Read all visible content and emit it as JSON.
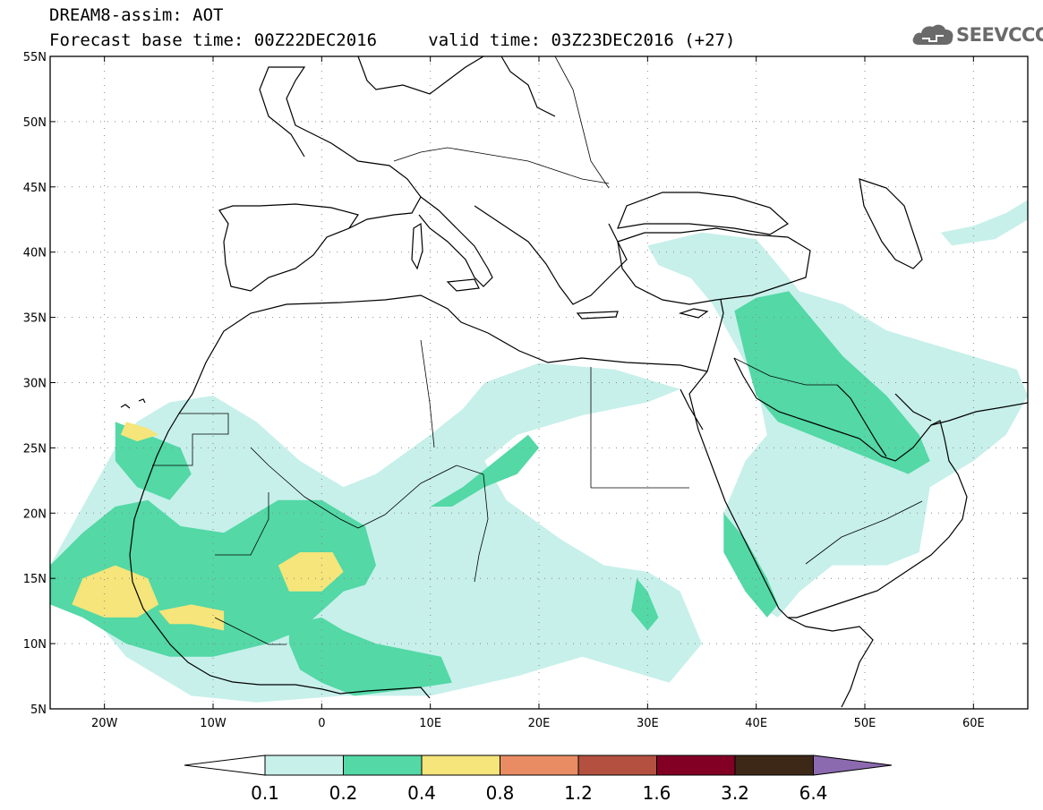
{
  "header": {
    "title_line1": "DREAM8-assim: AOT",
    "base_time_label": "Forecast base time: 00Z22DEC2016",
    "valid_time_label": "valid time: 03Z23DEC2016 (+27)"
  },
  "logo": {
    "text": "SEEVCCC",
    "icon": "cloud-icon"
  },
  "map": {
    "lon_range": [
      -25,
      65
    ],
    "lat_range": [
      5,
      55
    ],
    "lat_ticks": [
      {
        "value": 5,
        "label": "5N"
      },
      {
        "value": 10,
        "label": "10N"
      },
      {
        "value": 15,
        "label": "15N"
      },
      {
        "value": 20,
        "label": "20N"
      },
      {
        "value": 25,
        "label": "25N"
      },
      {
        "value": 30,
        "label": "30N"
      },
      {
        "value": 35,
        "label": "35N"
      },
      {
        "value": 40,
        "label": "40N"
      },
      {
        "value": 45,
        "label": "45N"
      },
      {
        "value": 50,
        "label": "50N"
      },
      {
        "value": 55,
        "label": "55N"
      }
    ],
    "lon_ticks": [
      {
        "value": -20,
        "label": "20W"
      },
      {
        "value": -10,
        "label": "10W"
      },
      {
        "value": 0,
        "label": "0"
      },
      {
        "value": 10,
        "label": "10E"
      },
      {
        "value": 20,
        "label": "20E"
      },
      {
        "value": 30,
        "label": "30E"
      },
      {
        "value": 40,
        "label": "40E"
      },
      {
        "value": 50,
        "label": "50E"
      },
      {
        "value": 60,
        "label": "60E"
      }
    ],
    "grid": "dotted",
    "colors": {
      "ocean": "#ffffff",
      "coastline": "#000000"
    }
  },
  "colorbar": {
    "levels": [
      "0.1",
      "0.2",
      "0.4",
      "0.8",
      "1.2",
      "1.6",
      "3.2",
      "6.4"
    ],
    "colors": [
      "#ffffff",
      "#c7f0ea",
      "#53d8a6",
      "#f5e57a",
      "#e98c64",
      "#b45040",
      "#820024",
      "#3d2716",
      "#8c6ab0"
    ],
    "extend": "both"
  },
  "aot_regions": [
    {
      "level": 1,
      "name": "west-africa-coast-light",
      "points": [
        [
          -25,
          16
        ],
        [
          -22,
          13
        ],
        [
          -18,
          9
        ],
        [
          -12,
          6
        ],
        [
          -6,
          5.5
        ],
        [
          2,
          6
        ],
        [
          10,
          6
        ],
        [
          18,
          7.5
        ],
        [
          24,
          9
        ],
        [
          28,
          8
        ],
        [
          32,
          7
        ],
        [
          35,
          10
        ],
        [
          33,
          14
        ],
        [
          30,
          15.5
        ],
        [
          26,
          16
        ],
        [
          22,
          18
        ],
        [
          17,
          21
        ],
        [
          15,
          24
        ],
        [
          18,
          26
        ],
        [
          24,
          27.5
        ],
        [
          30,
          28.5
        ],
        [
          33,
          29.5
        ],
        [
          27,
          31
        ],
        [
          20,
          31.5
        ],
        [
          15,
          30
        ],
        [
          13,
          28
        ],
        [
          10,
          26
        ],
        [
          5,
          23
        ],
        [
          2,
          22
        ],
        [
          -2,
          24
        ],
        [
          -6,
          27
        ],
        [
          -10,
          29
        ],
        [
          -14,
          28.5
        ],
        [
          -17,
          27
        ],
        [
          -19,
          25
        ],
        [
          -21,
          22
        ],
        [
          -23,
          19
        ]
      ]
    },
    {
      "level": 1,
      "name": "arabia-light",
      "points": [
        [
          30,
          40.5
        ],
        [
          35,
          41.5
        ],
        [
          40,
          41
        ],
        [
          44,
          37
        ],
        [
          48,
          36
        ],
        [
          52,
          34
        ],
        [
          56,
          33
        ],
        [
          60,
          32
        ],
        [
          64,
          31
        ],
        [
          65,
          29
        ],
        [
          63,
          26
        ],
        [
          60,
          24
        ],
        [
          56,
          22
        ],
        [
          55,
          17
        ],
        [
          52,
          16
        ],
        [
          47,
          16
        ],
        [
          44,
          14
        ],
        [
          42,
          12
        ],
        [
          40,
          13
        ],
        [
          38,
          17
        ],
        [
          37,
          20
        ],
        [
          39,
          24
        ],
        [
          41,
          26
        ],
        [
          40,
          30
        ],
        [
          38,
          33
        ],
        [
          36,
          36
        ],
        [
          34,
          38
        ],
        [
          31,
          39
        ]
      ]
    },
    {
      "level": 1,
      "name": "caspian-light",
      "points": [
        [
          57,
          41.5
        ],
        [
          60,
          42
        ],
        [
          63,
          43
        ],
        [
          65,
          44
        ],
        [
          65,
          42.5
        ],
        [
          62,
          41
        ],
        [
          58,
          40.5
        ]
      ]
    },
    {
      "level": 2,
      "name": "sahel-medium",
      "points": [
        [
          -25,
          16
        ],
        [
          -22,
          18.5
        ],
        [
          -19,
          20.5
        ],
        [
          -16,
          21
        ],
        [
          -13,
          19
        ],
        [
          -9,
          18.5
        ],
        [
          -6,
          20
        ],
        [
          -4,
          21
        ],
        [
          0,
          21
        ],
        [
          2,
          20
        ],
        [
          4,
          19
        ],
        [
          5,
          16
        ],
        [
          4,
          14.5
        ],
        [
          2,
          14
        ],
        [
          0,
          12.5
        ],
        [
          -2,
          11
        ],
        [
          -5,
          10
        ],
        [
          -10,
          9
        ],
        [
          -14,
          9
        ],
        [
          -18,
          10
        ],
        [
          -22,
          12
        ],
        [
          -25,
          13
        ]
      ]
    },
    {
      "level": 2,
      "name": "nigeria-medium",
      "points": [
        [
          -3,
          11.5
        ],
        [
          0,
          12
        ],
        [
          2,
          11
        ],
        [
          5,
          10
        ],
        [
          8,
          9.5
        ],
        [
          11,
          9
        ],
        [
          12,
          7
        ],
        [
          8,
          6.5
        ],
        [
          3,
          6
        ],
        [
          0,
          7
        ],
        [
          -2,
          8
        ],
        [
          -3,
          10
        ]
      ]
    },
    {
      "level": 2,
      "name": "chad-medium",
      "points": [
        [
          10,
          20.5
        ],
        [
          13,
          22
        ],
        [
          16,
          24
        ],
        [
          19,
          26
        ],
        [
          20,
          25
        ],
        [
          18,
          23
        ],
        [
          15,
          22
        ],
        [
          12,
          20.5
        ]
      ]
    },
    {
      "level": 2,
      "name": "morocco-medium",
      "points": [
        [
          -19,
          27
        ],
        [
          -16,
          26
        ],
        [
          -13,
          25
        ],
        [
          -12,
          23
        ],
        [
          -14,
          21
        ],
        [
          -17,
          22
        ],
        [
          -19,
          24
        ]
      ]
    },
    {
      "level": 2,
      "name": "mesopotamia-medium",
      "points": [
        [
          38,
          35.5
        ],
        [
          40,
          36.5
        ],
        [
          43,
          37
        ],
        [
          45,
          35
        ],
        [
          48,
          32
        ],
        [
          52,
          29
        ],
        [
          55,
          26
        ],
        [
          56,
          24
        ],
        [
          54,
          23
        ],
        [
          51,
          24
        ],
        [
          48,
          25
        ],
        [
          45,
          26
        ],
        [
          42,
          27
        ],
        [
          40,
          29
        ],
        [
          39,
          32
        ]
      ]
    },
    {
      "level": 2,
      "name": "red-sea-medium",
      "points": [
        [
          37,
          20
        ],
        [
          39,
          18
        ],
        [
          41,
          15
        ],
        [
          42,
          13
        ],
        [
          41,
          12
        ],
        [
          39,
          14
        ],
        [
          37,
          17
        ]
      ]
    },
    {
      "level": 2,
      "name": "sudan-medium",
      "points": [
        [
          29,
          15
        ],
        [
          30,
          14
        ],
        [
          31,
          12
        ],
        [
          30,
          11
        ],
        [
          28.5,
          12.5
        ]
      ]
    },
    {
      "level": 3,
      "name": "senegal-high",
      "points": [
        [
          -22,
          15
        ],
        [
          -19,
          16
        ],
        [
          -16,
          15
        ],
        [
          -15,
          13
        ],
        [
          -17,
          12
        ],
        [
          -20,
          12
        ],
        [
          -23,
          13
        ]
      ]
    },
    {
      "level": 3,
      "name": "mali-high",
      "points": [
        [
          -4,
          16
        ],
        [
          -2,
          17
        ],
        [
          1,
          17
        ],
        [
          2,
          15.5
        ],
        [
          0,
          14
        ],
        [
          -3,
          14
        ]
      ]
    },
    {
      "level": 3,
      "name": "guinea-high",
      "points": [
        [
          -15,
          12.5
        ],
        [
          -12,
          13
        ],
        [
          -9,
          12.5
        ],
        [
          -9,
          11
        ],
        [
          -12,
          11.5
        ],
        [
          -14,
          11.5
        ]
      ]
    },
    {
      "level": 3,
      "name": "canary-high",
      "points": [
        [
          -18,
          27
        ],
        [
          -16,
          26.5
        ],
        [
          -15,
          26
        ],
        [
          -17,
          25.5
        ],
        [
          -18.5,
          26
        ]
      ]
    }
  ]
}
